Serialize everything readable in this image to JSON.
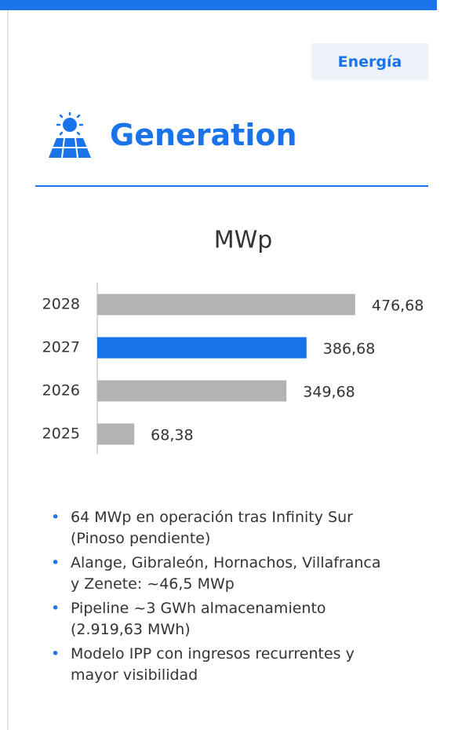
{
  "tag": "Energía",
  "heading": "Generation",
  "chart_data": {
    "type": "barh",
    "title": "MWp",
    "categories": [
      "2028",
      "2027",
      "2026",
      "2025"
    ],
    "values": [
      476.68,
      386.68,
      349.68,
      68.38
    ],
    "value_labels": [
      "476,68",
      "386,68",
      "349,68",
      "68,38"
    ],
    "colors": [
      "#b3b3b3",
      "#1a73e8",
      "#b3b3b3",
      "#b3b3b3"
    ],
    "xlim": [
      0,
      600
    ]
  },
  "bullets": [
    "64 MWp en operación tras Infinity Sur (Pinoso pendiente)",
    "Alange, Gibraleón, Hornachos, Villafranca y Zenete: ~46,5 MWp",
    "Pipeline ~3 GWh almacenamiento (2.919,63 MWh)",
    "Modelo IPP con ingresos recurrentes y mayor visibilidad"
  ]
}
